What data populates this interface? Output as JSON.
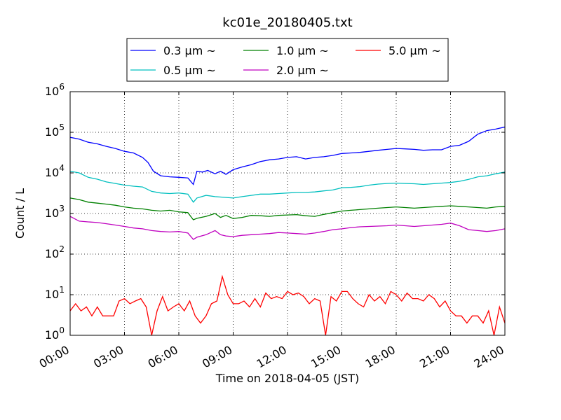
{
  "chart_data": {
    "type": "line",
    "title": "kc01e_20180405.txt",
    "xlabel": "Time on 2018-04-05 (JST)",
    "ylabel": "Count / L",
    "yscale": "log",
    "ylim": [
      1,
      1000000
    ],
    "xlim_hours": [
      0,
      24
    ],
    "grid": true,
    "legend_position": "top-center",
    "x_tick_labels": [
      "00:00",
      "03:00",
      "06:00",
      "09:00",
      "12:00",
      "15:00",
      "18:00",
      "21:00",
      "24:00"
    ],
    "y_tick_labels": [
      {
        "base": "10",
        "exp": "0"
      },
      {
        "base": "10",
        "exp": "1"
      },
      {
        "base": "10",
        "exp": "2"
      },
      {
        "base": "10",
        "exp": "3"
      },
      {
        "base": "10",
        "exp": "4"
      },
      {
        "base": "10",
        "exp": "5"
      },
      {
        "base": "10",
        "exp": "6"
      }
    ],
    "series": [
      {
        "name": "0.3 μm ~",
        "color": "#0000ff",
        "x": [
          0,
          0.5,
          1,
          1.5,
          2,
          2.5,
          3,
          3.5,
          4,
          4.3,
          4.6,
          5,
          5.5,
          6,
          6.5,
          6.8,
          7,
          7.3,
          7.6,
          8,
          8.3,
          8.6,
          9,
          9.5,
          10,
          10.5,
          11,
          11.5,
          12,
          12.5,
          13,
          13.5,
          14,
          14.5,
          15,
          15.5,
          16,
          16.5,
          17,
          17.5,
          18,
          18.5,
          19,
          19.5,
          20,
          20.5,
          21,
          21.5,
          22,
          22.5,
          23,
          23.5,
          24
        ],
        "y": [
          75000,
          68000,
          57000,
          52000,
          45000,
          40000,
          34000,
          31000,
          24000,
          18000,
          11000,
          8500,
          8000,
          7800,
          7500,
          5200,
          11000,
          10500,
          11500,
          9500,
          11000,
          9200,
          12000,
          14000,
          16000,
          19000,
          21000,
          22000,
          24000,
          25000,
          22000,
          24000,
          25000,
          27000,
          30000,
          31000,
          32000,
          34000,
          36000,
          38000,
          40000,
          39000,
          38000,
          36000,
          37000,
          37000,
          45000,
          48000,
          60000,
          90000,
          110000,
          120000,
          135000
        ]
      },
      {
        "name": "0.5 μm ~",
        "color": "#00bfbf",
        "x": [
          0,
          0.5,
          1,
          1.5,
          2,
          2.5,
          3,
          3.5,
          4,
          4.5,
          5,
          5.5,
          6,
          6.5,
          6.8,
          7,
          7.5,
          8,
          8.5,
          9,
          9.5,
          10,
          10.5,
          11,
          11.5,
          12,
          12.5,
          13,
          13.5,
          14,
          14.5,
          15,
          15.5,
          16,
          16.5,
          17,
          17.5,
          18,
          18.5,
          19,
          19.5,
          20,
          20.5,
          21,
          21.5,
          22,
          22.5,
          23,
          23.5,
          24
        ],
        "y": [
          11000,
          10000,
          7800,
          7000,
          6000,
          5500,
          5000,
          4700,
          4500,
          3500,
          3200,
          3100,
          3200,
          3000,
          1900,
          2400,
          2800,
          2600,
          2500,
          2400,
          2600,
          2800,
          3000,
          3000,
          3100,
          3200,
          3300,
          3300,
          3400,
          3600,
          3800,
          4300,
          4400,
          4600,
          5000,
          5300,
          5500,
          5600,
          5500,
          5400,
          5200,
          5400,
          5600,
          5800,
          6200,
          6900,
          8000,
          8500,
          9500,
          10500
        ]
      },
      {
        "name": "1.0 μm ~",
        "color": "#008000",
        "x": [
          0,
          0.5,
          1,
          1.5,
          2,
          2.5,
          3,
          3.5,
          4,
          4.5,
          5,
          5.5,
          6,
          6.5,
          6.8,
          7,
          7.5,
          8,
          8.3,
          8.6,
          9,
          9.5,
          10,
          10.5,
          11,
          11.5,
          12,
          12.5,
          13,
          13.5,
          14,
          14.5,
          15,
          15.5,
          16,
          16.5,
          17,
          17.5,
          18,
          18.5,
          19,
          19.5,
          20,
          20.5,
          21,
          21.5,
          22,
          22.5,
          23,
          23.5,
          24
        ],
        "y": [
          2400,
          2200,
          1900,
          1800,
          1700,
          1600,
          1450,
          1350,
          1300,
          1200,
          1150,
          1200,
          1100,
          1050,
          700,
          760,
          850,
          1000,
          800,
          900,
          750,
          800,
          900,
          880,
          850,
          900,
          920,
          940,
          880,
          850,
          950,
          1050,
          1150,
          1200,
          1250,
          1300,
          1350,
          1400,
          1450,
          1400,
          1350,
          1400,
          1450,
          1500,
          1550,
          1500,
          1450,
          1400,
          1350,
          1450,
          1500
        ]
      },
      {
        "name": "2.0 μm ~",
        "color": "#bf00bf",
        "x": [
          0,
          0.5,
          1,
          1.5,
          2,
          2.5,
          3,
          3.5,
          4,
          4.5,
          5,
          5.5,
          6,
          6.5,
          6.8,
          7,
          7.5,
          8,
          8.3,
          8.6,
          9,
          9.5,
          10,
          10.5,
          11,
          11.5,
          12,
          12.5,
          13,
          13.5,
          14,
          14.5,
          15,
          15.5,
          16,
          16.5,
          17,
          17.5,
          18,
          18.5,
          19,
          19.5,
          20,
          20.5,
          21,
          21.5,
          22,
          22.5,
          23,
          23.5,
          24
        ],
        "y": [
          850,
          650,
          620,
          600,
          560,
          520,
          480,
          440,
          420,
          380,
          360,
          350,
          360,
          330,
          230,
          260,
          300,
          380,
          300,
          280,
          270,
          290,
          300,
          310,
          320,
          340,
          330,
          320,
          310,
          330,
          360,
          400,
          420,
          450,
          470,
          480,
          490,
          500,
          520,
          500,
          480,
          500,
          520,
          540,
          580,
          500,
          400,
          380,
          360,
          380,
          420
        ]
      },
      {
        "name": "5.0 μm ~",
        "color": "#ff0000",
        "x": [
          0,
          0.3,
          0.6,
          0.9,
          1.2,
          1.5,
          1.8,
          2.1,
          2.4,
          2.7,
          3,
          3.3,
          3.6,
          3.9,
          4.2,
          4.5,
          4.8,
          5.1,
          5.4,
          5.7,
          6,
          6.3,
          6.6,
          6.9,
          7.2,
          7.5,
          7.8,
          8.1,
          8.4,
          8.7,
          9,
          9.3,
          9.6,
          9.9,
          10.2,
          10.5,
          10.8,
          11.1,
          11.4,
          11.7,
          12,
          12.3,
          12.6,
          12.9,
          13.2,
          13.5,
          13.8,
          14.1,
          14.4,
          14.7,
          15,
          15.3,
          15.6,
          15.9,
          16.2,
          16.5,
          16.8,
          17.1,
          17.4,
          17.7,
          18,
          18.3,
          18.6,
          18.9,
          19.2,
          19.5,
          19.8,
          20.1,
          20.4,
          20.7,
          21,
          21.3,
          21.6,
          21.9,
          22.2,
          22.5,
          22.8,
          23.1,
          23.4,
          23.7,
          24
        ],
        "y": [
          4,
          6,
          4,
          5,
          3,
          5,
          3,
          3,
          3,
          7,
          8,
          6,
          7,
          8,
          5,
          1,
          4,
          9,
          4,
          5,
          6,
          4,
          7,
          3,
          2,
          3,
          6,
          7,
          28,
          10,
          6,
          6,
          7,
          5,
          8,
          5,
          11,
          8,
          9,
          8,
          12,
          10,
          11,
          9,
          6,
          8,
          7,
          1,
          9,
          7,
          12,
          12,
          8,
          6,
          5,
          10,
          7,
          9,
          6,
          12,
          10,
          7,
          11,
          8,
          8,
          7,
          10,
          8,
          5,
          7,
          4,
          3,
          3,
          2,
          3,
          3,
          2,
          4,
          1,
          5,
          2
        ]
      }
    ]
  }
}
